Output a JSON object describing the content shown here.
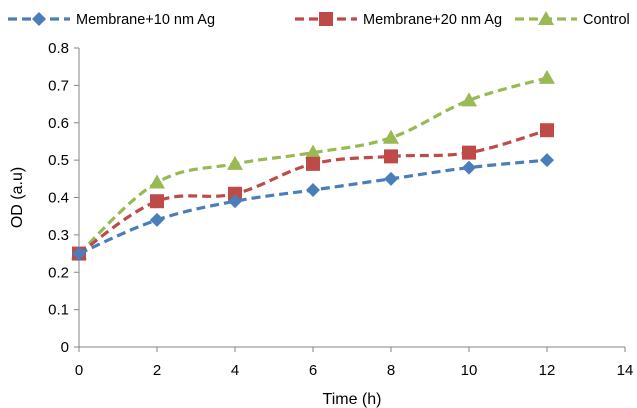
{
  "chart_data": {
    "type": "line",
    "title": "",
    "xlabel": "Time (h)",
    "ylabel": "OD (a.u)",
    "xlim": [
      0,
      14
    ],
    "ylim": [
      0,
      0.8
    ],
    "x_ticks": [
      "0",
      "2",
      "4",
      "6",
      "8",
      "10",
      "12",
      "14"
    ],
    "y_ticks": [
      "0",
      "0.1",
      "0.2",
      "0.3",
      "0.4",
      "0.5",
      "0.6",
      "0.7",
      "0.8"
    ],
    "grid": false,
    "legend_position": "top",
    "series": [
      {
        "name": "Membrane+10 nm Ag",
        "color": "#4a7ebb",
        "marker": "diamond",
        "line_style": "dashed",
        "x": [
          0,
          2,
          4,
          6,
          8,
          10,
          12
        ],
        "y": [
          0.25,
          0.34,
          0.39,
          0.42,
          0.45,
          0.48,
          0.5
        ]
      },
      {
        "name": "Membrane+20 nm Ag",
        "color": "#be4b48",
        "marker": "square",
        "line_style": "dashed",
        "x": [
          0,
          2,
          4,
          6,
          8,
          10,
          12
        ],
        "y": [
          0.25,
          0.39,
          0.41,
          0.49,
          0.51,
          0.52,
          0.58
        ]
      },
      {
        "name": "Control",
        "color": "#98b954",
        "marker": "triangle",
        "line_style": "dashed",
        "x": [
          0,
          2,
          4,
          6,
          8,
          10,
          12
        ],
        "y": [
          0.25,
          0.44,
          0.49,
          0.52,
          0.56,
          0.66,
          0.72
        ]
      }
    ]
  }
}
